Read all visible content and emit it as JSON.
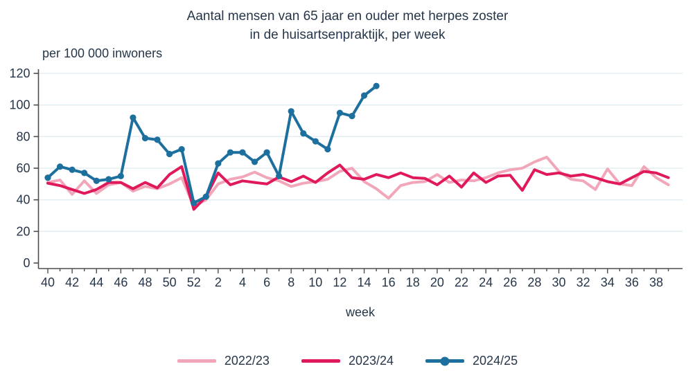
{
  "title": {
    "line1": "Aantal mensen van 65 jaar en ouder met herpes zoster",
    "line2": "in de huisartsenpraktijk, per week"
  },
  "y_axis": {
    "label": "per 100 000 inwoners",
    "ticks": [
      0,
      20,
      40,
      60,
      80,
      100,
      120
    ]
  },
  "x_axis": {
    "label": "week"
  },
  "legend": [
    {
      "label": "2022/23",
      "color": "#f2a6b9",
      "marker": "line"
    },
    {
      "label": "2023/24",
      "color": "#e0195a",
      "marker": "line"
    },
    {
      "label": "2024/25",
      "color": "#1d6f9e",
      "marker": "line-dot"
    }
  ],
  "colors": {
    "pink": "#f2a6b9",
    "red": "#e0195a",
    "blue": "#1d6f9e",
    "text": "#26364a",
    "gridline": "#e3edf2",
    "axis": "#4d4d4d"
  },
  "chart_data": {
    "type": "line",
    "x_weeks": [
      40,
      41,
      42,
      43,
      44,
      45,
      46,
      47,
      48,
      49,
      50,
      51,
      52,
      1,
      2,
      3,
      4,
      5,
      6,
      7,
      8,
      9,
      10,
      11,
      12,
      13,
      14,
      15,
      16,
      17,
      18,
      19,
      20,
      21,
      22,
      23,
      24,
      25,
      26,
      27,
      28,
      29,
      30,
      31,
      32,
      33,
      34,
      35,
      36,
      37,
      38,
      39
    ],
    "x_major_tick_labels": [
      40,
      42,
      44,
      46,
      48,
      50,
      52,
      2,
      4,
      6,
      8,
      10,
      12,
      14,
      16,
      18,
      20,
      22,
      24,
      26,
      28,
      30,
      32,
      34,
      36,
      38
    ],
    "ylim": [
      0,
      120
    ],
    "grid": "horizontal",
    "legend_position": "bottom",
    "series": [
      {
        "name": "2022/23",
        "color": "#f2a6b9",
        "marker": "none",
        "values": [
          51,
          52.5,
          43.5,
          52,
          44,
          49.5,
          51,
          45.5,
          48.5,
          47,
          50,
          54,
          36,
          40,
          50,
          53,
          54.5,
          57.5,
          54,
          52,
          48.5,
          50.5,
          51.5,
          53,
          58,
          60,
          51.5,
          47,
          41,
          49,
          51,
          51.5,
          56,
          51,
          52.5,
          52,
          54,
          57,
          59,
          60,
          64,
          67,
          58,
          53,
          52,
          46.5,
          59.5,
          50,
          49,
          61,
          54,
          49.5
        ]
      },
      {
        "name": "2023/24",
        "color": "#e0195a",
        "marker": "none",
        "values": [
          50.5,
          49,
          46.5,
          44,
          46.5,
          51,
          51,
          47,
          51,
          47.5,
          56,
          61,
          34,
          42,
          57,
          49.5,
          52,
          51,
          50,
          54.5,
          51.5,
          55,
          51,
          57,
          62,
          54,
          53,
          56,
          54,
          57,
          54,
          53.5,
          49.5,
          55,
          48,
          57,
          51,
          55,
          55.5,
          46,
          59,
          56,
          57,
          55,
          56,
          54,
          51.5,
          50,
          54,
          58,
          57,
          54
        ]
      },
      {
        "name": "2024/25",
        "color": "#1d6f9e",
        "marker": "dot",
        "values": [
          54,
          61,
          59,
          57,
          52,
          53,
          55,
          92,
          79,
          78,
          69,
          72,
          38,
          42,
          63,
          70,
          70,
          64,
          70,
          55,
          96,
          82,
          77,
          72,
          95,
          93,
          106,
          112,
          null,
          null,
          null,
          null,
          null,
          null,
          null,
          null,
          null,
          null,
          null,
          null,
          null,
          null,
          null,
          null,
          null,
          null,
          null,
          null,
          null,
          null,
          null,
          null
        ]
      }
    ]
  }
}
